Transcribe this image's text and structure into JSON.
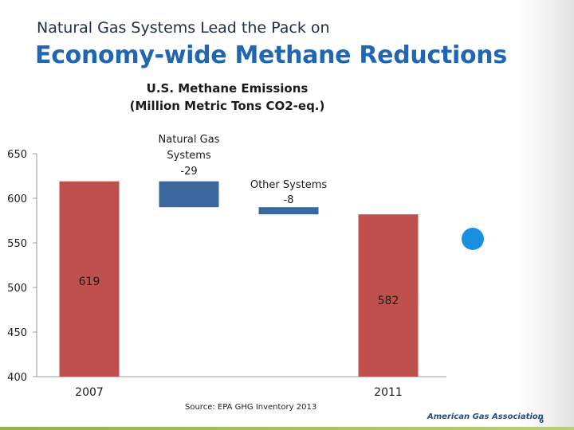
{
  "slide": {
    "kicker": "Natural Gas Systems Lead the Pack on",
    "headline": "Economy-wide Methane Reductions",
    "source": "Source: EPA GHG Inventory 2013",
    "logo": "American Gas Association",
    "page_number": "6",
    "colors": {
      "headline": "#1f66b3",
      "total_bar": "#c0504d",
      "reduction_bar": "#3a679c",
      "dot": "#1a8ee0"
    }
  },
  "chart_data": {
    "type": "bar",
    "subtype": "waterfall",
    "title": [
      "U.S. Methane Emissions",
      "(Million Metric Tons CO2-eq.)"
    ],
    "ylim": [
      400,
      650
    ],
    "yticks": [
      "650",
      "600",
      "550",
      "500",
      "450",
      "400"
    ],
    "xlabels": [
      "2007",
      "2011"
    ],
    "bars": [
      {
        "role": "total",
        "base": 400,
        "top": 619,
        "label": [
          "619"
        ],
        "color": "#c0504d"
      },
      {
        "role": "change",
        "base": 590,
        "top": 619,
        "label": [
          "Natural Gas",
          "Systems",
          "-29"
        ],
        "color": "#3a679c"
      },
      {
        "role": "change",
        "base": 582,
        "top": 590,
        "label": [
          "Other Systems",
          "-8"
        ],
        "color": "#3a679c"
      },
      {
        "role": "total",
        "base": 400,
        "top": 582,
        "label": [
          "582"
        ],
        "color": "#c0504d"
      }
    ]
  }
}
